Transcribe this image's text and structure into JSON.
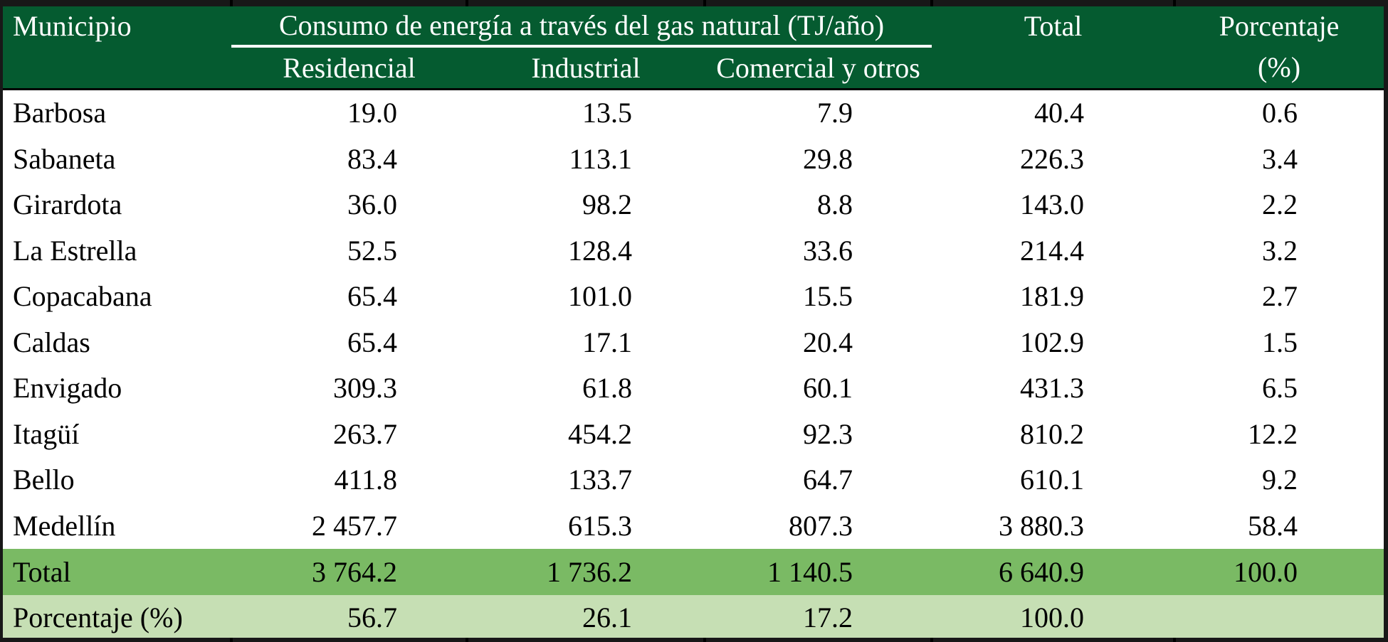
{
  "table": {
    "header": {
      "municipio": "Municipio",
      "group": "Consumo de energía a través del gas natural (TJ/año)",
      "sub_columns": [
        "Residencial",
        "Industrial",
        "Comercial y otros"
      ],
      "total": "Total",
      "porcentaje_line1": "Porcentaje",
      "porcentaje_line2": "(%)"
    },
    "rows": [
      {
        "type": "data",
        "label": "Barbosa",
        "values": [
          "19.0",
          "13.5",
          "7.9",
          "40.4",
          "0.6"
        ]
      },
      {
        "type": "data",
        "label": "Sabaneta",
        "values": [
          "83.4",
          "113.1",
          "29.8",
          "226.3",
          "3.4"
        ]
      },
      {
        "type": "data",
        "label": "Girardota",
        "values": [
          "36.0",
          "98.2",
          "8.8",
          "143.0",
          "2.2"
        ]
      },
      {
        "type": "data",
        "label": "La Estrella",
        "values": [
          "52.5",
          "128.4",
          "33.6",
          "214.4",
          "3.2"
        ]
      },
      {
        "type": "data",
        "label": "Copacabana",
        "values": [
          "65.4",
          "101.0",
          "15.5",
          "181.9",
          "2.7"
        ]
      },
      {
        "type": "data",
        "label": "Caldas",
        "values": [
          "65.4",
          "17.1",
          "20.4",
          "102.9",
          "1.5"
        ]
      },
      {
        "type": "data",
        "label": "Envigado",
        "values": [
          "309.3",
          "61.8",
          "60.1",
          "431.3",
          "6.5"
        ]
      },
      {
        "type": "data",
        "label": "Itagüí",
        "values": [
          "263.7",
          "454.2",
          "92.3",
          "810.2",
          "12.2"
        ]
      },
      {
        "type": "data",
        "label": "Bello",
        "values": [
          "411.8",
          "133.7",
          "64.7",
          "610.1",
          "9.2"
        ]
      },
      {
        "type": "data",
        "label": "Medellín",
        "values": [
          "2 457.7",
          "615.3",
          "807.3",
          "3 880.3",
          "58.4"
        ]
      },
      {
        "type": "total",
        "label": "Total",
        "values": [
          "3 764.2",
          "1 736.2",
          "1 140.5",
          "6 640.9",
          "100.0"
        ]
      },
      {
        "type": "pct",
        "label": "Porcentaje (%)",
        "values": [
          "56.7",
          "26.1",
          "17.2",
          "100.0",
          ""
        ]
      }
    ]
  },
  "colors": {
    "header_bg": "#055B30",
    "header_text": "#FFFFFF",
    "total_row_bg": "#7ABA64",
    "pct_row_bg": "#C6DFB4",
    "body_text": "#000000",
    "frame_border": "#181818"
  },
  "chart_data": {
    "type": "table",
    "title": "Consumo de energía a través del gas natural (TJ/año)",
    "columns": [
      "Municipio",
      "Residencial",
      "Industrial",
      "Comercial y otros",
      "Total",
      "Porcentaje (%)"
    ],
    "unit": "TJ/año",
    "rows": [
      [
        "Barbosa",
        19.0,
        13.5,
        7.9,
        40.4,
        0.6
      ],
      [
        "Sabaneta",
        83.4,
        113.1,
        29.8,
        226.3,
        3.4
      ],
      [
        "Girardota",
        36.0,
        98.2,
        8.8,
        143.0,
        2.2
      ],
      [
        "La Estrella",
        52.5,
        128.4,
        33.6,
        214.4,
        3.2
      ],
      [
        "Copacabana",
        65.4,
        101.0,
        15.5,
        181.9,
        2.7
      ],
      [
        "Caldas",
        65.4,
        17.1,
        20.4,
        102.9,
        1.5
      ],
      [
        "Envigado",
        309.3,
        61.8,
        60.1,
        431.3,
        6.5
      ],
      [
        "Itagüí",
        263.7,
        454.2,
        92.3,
        810.2,
        12.2
      ],
      [
        "Bello",
        411.8,
        133.7,
        64.7,
        610.1,
        9.2
      ],
      [
        "Medellín",
        2457.7,
        615.3,
        807.3,
        3880.3,
        58.4
      ],
      [
        "Total",
        3764.2,
        1736.2,
        1140.5,
        6640.9,
        100.0
      ],
      [
        "Porcentaje (%)",
        56.7,
        26.1,
        17.2,
        100.0,
        null
      ]
    ]
  }
}
